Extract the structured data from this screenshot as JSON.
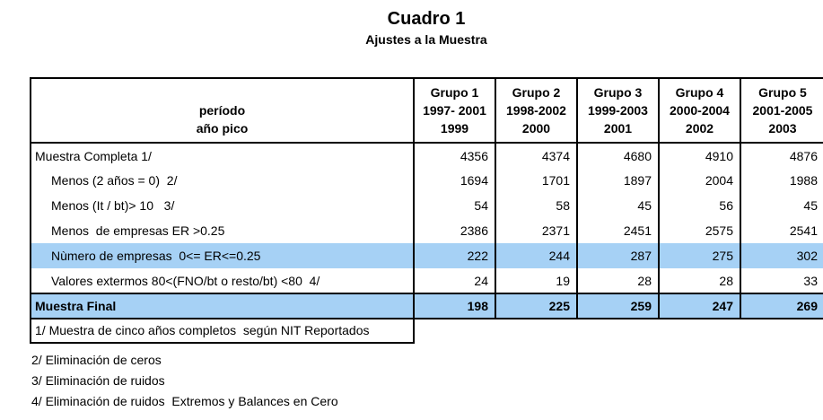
{
  "title": "Cuadro 1",
  "subtitle": "Ajustes a la Muestra",
  "colors": {
    "highlight_blue": "#A6D1F5",
    "border": "#000000",
    "text": "#000000",
    "background": "#FFFFFF"
  },
  "table": {
    "header": {
      "period_label": "período",
      "peak_label": "año pico",
      "groups": [
        {
          "name": "Grupo 1",
          "period": "1997- 2001",
          "peak": "1999"
        },
        {
          "name": "Grupo 2",
          "period": "1998-2002",
          "peak": "2000"
        },
        {
          "name": "Grupo 3",
          "period": "1999-2003",
          "peak": "2001"
        },
        {
          "name": "Grupo 4",
          "period": "2000-2004",
          "peak": "2002"
        },
        {
          "name": "Grupo 5",
          "period": "2001-2005",
          "peak": "2003"
        }
      ]
    },
    "rows": [
      {
        "label": "Muestra Completa 1/",
        "values": [
          "4356",
          "4374",
          "4680",
          "4910",
          "4876"
        ]
      },
      {
        "label": "Menos (2 años = 0)  2/",
        "values": [
          "1694",
          "1701",
          "1897",
          "2004",
          "1988"
        ]
      },
      {
        "label": "Menos (It / bt)> 10   3/",
        "values": [
          "54",
          "58",
          "45",
          "56",
          "45"
        ]
      },
      {
        "label": "Menos  de empresas ER >0.25",
        "values": [
          "2386",
          "2371",
          "2451",
          "2575",
          "2541"
        ]
      },
      {
        "label": "Nùmero de empresas  0<= ER<=0.25",
        "values": [
          "222",
          "244",
          "287",
          "275",
          "302"
        ],
        "highlighted": true
      },
      {
        "label": "Valores extermos 80<(FNO/bt o resto/bt) <80  4/",
        "values": [
          "24",
          "19",
          "28",
          "28",
          "33"
        ]
      },
      {
        "label": "Muestra Final",
        "values": [
          "198",
          "225",
          "259",
          "247",
          "269"
        ],
        "highlighted": true,
        "bold": true
      }
    ]
  },
  "footnotes": [
    "1/ Muestra de cinco años completos  según NIT Reportados",
    "2/ Eliminación de ceros",
    "3/ Eliminación de ruidos",
    "4/ Eliminación de ruidos  Extremos y Balances en Cero"
  ]
}
